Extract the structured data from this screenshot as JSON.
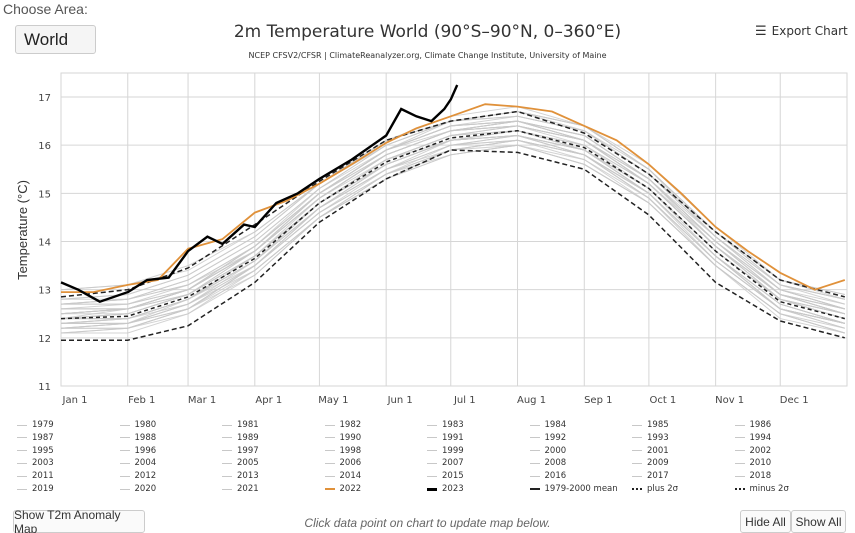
{
  "area": {
    "label": "Choose Area:",
    "selected": "World"
  },
  "header": {
    "title": "2m Temperature World (90°S–90°N, 0–360°E)",
    "subtitle": "NCEP CFSV2/CFSR | ClimateReanalyzer.org, Climate Change Institute, University of Maine",
    "export_label": "Export Chart",
    "export_icon": "hamburger-menu-icon"
  },
  "footer": {
    "anomaly_button": "Show T2m Anomaly Map",
    "hint": "Click data point on chart to update map below.",
    "hide_all": "Hide All",
    "show_all": "Show All"
  },
  "colors": {
    "grey_years": "#c8c8c8",
    "y2022": "#e0913a",
    "y2023": "#000000",
    "climatology": "#222222",
    "grid": "#d6d6d6"
  },
  "chart_data": {
    "type": "line",
    "title": "2m Temperature World (90°S–90°N, 0–360°E)",
    "ylabel": "Temperature (°C)",
    "xlabel": "",
    "ylim": [
      11,
      17.5
    ],
    "yticks": [
      11,
      12,
      13,
      14,
      15,
      16,
      17
    ],
    "x_unit": "day of year",
    "xlim": [
      0,
      365
    ],
    "xticks": [
      {
        "day": 0,
        "label": "Jan 1"
      },
      {
        "day": 31,
        "label": "Feb 1"
      },
      {
        "day": 59,
        "label": "Mar 1"
      },
      {
        "day": 90,
        "label": "Apr 1"
      },
      {
        "day": 120,
        "label": "May 1"
      },
      {
        "day": 151,
        "label": "Jun 1"
      },
      {
        "day": 181,
        "label": "Jul 1"
      },
      {
        "day": 212,
        "label": "Aug 1"
      },
      {
        "day": 243,
        "label": "Sep 1"
      },
      {
        "day": 273,
        "label": "Oct 1"
      },
      {
        "day": 304,
        "label": "Nov 1"
      },
      {
        "day": 334,
        "label": "Dec 1"
      }
    ],
    "grid": true,
    "legend_position": "bottom",
    "monthly_days": [
      0,
      31,
      59,
      90,
      120,
      151,
      181,
      212,
      243,
      273,
      304,
      334,
      364
    ],
    "years": [
      {
        "name": "1979",
        "values": [
          12.2,
          12.2,
          12.6,
          13.4,
          14.5,
          15.4,
          15.9,
          16.1,
          15.7,
          14.9,
          13.5,
          12.5,
          12.2
        ]
      },
      {
        "name": "1980",
        "values": [
          12.3,
          12.3,
          12.7,
          13.5,
          14.7,
          15.5,
          16.0,
          16.1,
          15.8,
          15.0,
          13.6,
          12.6,
          12.2
        ]
      },
      {
        "name": "1981",
        "values": [
          12.2,
          12.3,
          12.6,
          13.5,
          14.6,
          15.4,
          16.0,
          16.1,
          15.8,
          14.9,
          13.6,
          12.6,
          12.3
        ]
      },
      {
        "name": "1982",
        "values": [
          12.1,
          12.2,
          12.5,
          13.4,
          14.5,
          15.3,
          15.8,
          16.0,
          15.7,
          14.8,
          13.5,
          12.5,
          12.1
        ]
      },
      {
        "name": "1983",
        "values": [
          12.4,
          12.4,
          12.8,
          13.5,
          14.7,
          15.5,
          16.1,
          16.2,
          15.8,
          15.0,
          13.7,
          12.6,
          12.3
        ]
      },
      {
        "name": "1984",
        "values": [
          12.1,
          12.1,
          12.5,
          13.3,
          14.5,
          15.4,
          15.8,
          16.0,
          15.6,
          14.8,
          13.5,
          12.4,
          12.1
        ]
      },
      {
        "name": "1985",
        "values": [
          12.1,
          12.2,
          12.6,
          13.3,
          14.5,
          15.3,
          15.9,
          16.0,
          15.6,
          14.8,
          13.5,
          12.5,
          12.1
        ]
      },
      {
        "name": "1986",
        "values": [
          12.2,
          12.3,
          12.6,
          13.5,
          14.6,
          15.5,
          15.9,
          16.1,
          15.8,
          14.9,
          13.6,
          12.6,
          12.3
        ]
      },
      {
        "name": "1987",
        "values": [
          12.3,
          12.4,
          12.8,
          13.6,
          14.8,
          15.6,
          16.1,
          16.3,
          15.9,
          15.1,
          13.8,
          12.8,
          12.4
        ]
      },
      {
        "name": "1988",
        "values": [
          12.5,
          12.5,
          12.9,
          13.7,
          14.8,
          15.6,
          16.1,
          16.2,
          15.9,
          15.0,
          13.7,
          12.6,
          12.3
        ]
      },
      {
        "name": "1989",
        "values": [
          12.2,
          12.3,
          12.7,
          13.5,
          14.7,
          15.5,
          16.0,
          16.2,
          15.8,
          15.0,
          13.7,
          12.6,
          12.3
        ]
      },
      {
        "name": "1990",
        "values": [
          12.4,
          12.5,
          12.9,
          13.7,
          14.8,
          15.7,
          16.1,
          16.3,
          16.0,
          15.1,
          13.8,
          12.8,
          12.4
        ]
      },
      {
        "name": "1991",
        "values": [
          12.4,
          12.4,
          12.8,
          13.7,
          14.8,
          15.6,
          16.1,
          16.2,
          15.8,
          15.0,
          13.7,
          12.7,
          12.3
        ]
      },
      {
        "name": "1992",
        "values": [
          12.3,
          12.3,
          12.7,
          13.4,
          14.5,
          15.3,
          15.8,
          16.0,
          15.6,
          14.8,
          13.5,
          12.5,
          12.1
        ]
      },
      {
        "name": "1993",
        "values": [
          12.2,
          12.2,
          12.6,
          13.5,
          14.6,
          15.4,
          15.9,
          16.1,
          15.8,
          14.9,
          13.6,
          12.6,
          12.2
        ]
      },
      {
        "name": "1994",
        "values": [
          12.3,
          12.3,
          12.8,
          13.6,
          14.7,
          15.6,
          16.1,
          16.2,
          15.9,
          15.0,
          13.7,
          12.7,
          12.3
        ]
      },
      {
        "name": "1995",
        "values": [
          12.4,
          12.6,
          12.9,
          13.7,
          14.8,
          15.7,
          16.2,
          16.3,
          15.9,
          15.1,
          13.8,
          12.8,
          12.4
        ]
      },
      {
        "name": "1996",
        "values": [
          12.3,
          12.4,
          12.7,
          13.6,
          14.7,
          15.5,
          16.0,
          16.2,
          15.9,
          15.0,
          13.7,
          12.6,
          12.3
        ]
      },
      {
        "name": "1997",
        "values": [
          12.4,
          12.5,
          12.9,
          13.7,
          14.8,
          15.7,
          16.2,
          16.4,
          16.1,
          15.2,
          13.9,
          12.9,
          12.6
        ]
      },
      {
        "name": "1998",
        "values": [
          12.8,
          12.8,
          13.1,
          13.9,
          15.0,
          15.9,
          16.4,
          16.5,
          16.1,
          15.2,
          13.9,
          12.8,
          12.5
        ]
      },
      {
        "name": "1999",
        "values": [
          12.4,
          12.4,
          12.8,
          13.6,
          14.7,
          15.6,
          16.1,
          16.3,
          15.9,
          15.0,
          13.7,
          12.7,
          12.3
        ]
      },
      {
        "name": "2000",
        "values": [
          12.3,
          12.4,
          12.8,
          13.6,
          14.8,
          15.6,
          16.1,
          16.2,
          15.9,
          15.1,
          13.7,
          12.7,
          12.3
        ]
      },
      {
        "name": "2001",
        "values": [
          12.4,
          12.5,
          12.9,
          13.8,
          14.9,
          15.8,
          16.3,
          16.4,
          16.1,
          15.2,
          13.9,
          12.9,
          12.5
        ]
      },
      {
        "name": "2002",
        "values": [
          12.6,
          12.7,
          13.1,
          13.8,
          15.0,
          15.8,
          16.3,
          16.4,
          16.1,
          15.3,
          14.0,
          12.9,
          12.6
        ]
      },
      {
        "name": "2003",
        "values": [
          12.6,
          12.6,
          13.0,
          13.8,
          14.9,
          15.8,
          16.3,
          16.5,
          16.1,
          15.3,
          13.9,
          12.9,
          12.5
        ]
      },
      {
        "name": "2004",
        "values": [
          12.5,
          12.6,
          13.0,
          13.8,
          14.9,
          15.7,
          16.2,
          16.4,
          16.0,
          15.2,
          14.0,
          12.9,
          12.5
        ]
      },
      {
        "name": "2005",
        "values": [
          12.5,
          12.6,
          13.0,
          13.9,
          15.0,
          15.9,
          16.3,
          16.5,
          16.2,
          15.3,
          14.0,
          12.9,
          12.5
        ]
      },
      {
        "name": "2006",
        "values": [
          12.5,
          12.6,
          12.9,
          13.8,
          14.9,
          15.8,
          16.3,
          16.5,
          16.1,
          15.3,
          14.0,
          13.0,
          12.6
        ]
      },
      {
        "name": "2007",
        "values": [
          12.7,
          12.7,
          13.0,
          13.8,
          14.9,
          15.8,
          16.3,
          16.4,
          16.1,
          15.2,
          13.9,
          12.8,
          12.5
        ]
      },
      {
        "name": "2008",
        "values": [
          12.4,
          12.4,
          12.8,
          13.7,
          14.8,
          15.7,
          16.2,
          16.3,
          16.0,
          15.2,
          13.9,
          12.8,
          12.5
        ]
      },
      {
        "name": "2009",
        "values": [
          12.5,
          12.6,
          13.0,
          13.8,
          15.0,
          15.9,
          16.4,
          16.5,
          16.2,
          15.3,
          14.1,
          13.0,
          12.6
        ]
      },
      {
        "name": "2010",
        "values": [
          12.7,
          12.8,
          13.2,
          14.0,
          15.1,
          15.9,
          16.4,
          16.5,
          16.1,
          15.2,
          13.9,
          12.9,
          12.6
        ]
      },
      {
        "name": "2011",
        "values": [
          12.4,
          12.5,
          12.9,
          13.7,
          14.9,
          15.8,
          16.3,
          16.4,
          16.1,
          15.2,
          13.9,
          12.9,
          12.5
        ]
      },
      {
        "name": "2012",
        "values": [
          12.5,
          12.6,
          13.0,
          13.8,
          15.0,
          15.9,
          16.4,
          16.5,
          16.2,
          15.3,
          14.0,
          13.0,
          12.6
        ]
      },
      {
        "name": "2013",
        "values": [
          12.6,
          12.6,
          13.0,
          13.8,
          15.0,
          15.8,
          16.3,
          16.5,
          16.2,
          15.3,
          14.0,
          13.0,
          12.6
        ]
      },
      {
        "name": "2014",
        "values": [
          12.6,
          12.6,
          13.0,
          13.9,
          15.0,
          15.9,
          16.4,
          16.6,
          16.3,
          15.4,
          14.1,
          13.0,
          12.7
        ]
      },
      {
        "name": "2015",
        "values": [
          12.7,
          12.8,
          13.2,
          14.0,
          15.1,
          16.0,
          16.5,
          16.7,
          16.4,
          15.5,
          14.2,
          13.2,
          12.9
        ]
      },
      {
        "name": "2016",
        "values": [
          13.0,
          13.1,
          13.5,
          14.2,
          15.2,
          16.0,
          16.5,
          16.7,
          16.4,
          15.5,
          14.2,
          13.1,
          12.8
        ]
      },
      {
        "name": "2017",
        "values": [
          12.8,
          12.9,
          13.3,
          14.1,
          15.2,
          16.1,
          16.5,
          16.7,
          16.4,
          15.5,
          14.2,
          13.2,
          12.8
        ]
      },
      {
        "name": "2018",
        "values": [
          12.7,
          12.8,
          13.1,
          13.9,
          15.1,
          16.0,
          16.5,
          16.6,
          16.3,
          15.4,
          14.1,
          13.1,
          12.7
        ]
      },
      {
        "name": "2019",
        "values": [
          12.8,
          12.9,
          13.3,
          14.1,
          15.2,
          16.1,
          16.6,
          16.8,
          16.4,
          15.6,
          14.3,
          13.2,
          12.9
        ]
      },
      {
        "name": "2020",
        "values": [
          13.0,
          13.1,
          13.4,
          14.2,
          15.2,
          16.1,
          16.5,
          16.7,
          16.3,
          15.4,
          14.2,
          13.1,
          12.8
        ]
      },
      {
        "name": "2021",
        "values": [
          12.7,
          12.7,
          13.0,
          13.9,
          15.0,
          15.9,
          16.5,
          16.6,
          16.3,
          15.5,
          14.1,
          13.1,
          12.8
        ]
      }
    ],
    "y2022": {
      "name": "2022",
      "days": [
        0,
        15,
        31,
        45,
        59,
        75,
        90,
        105,
        120,
        135,
        151,
        165,
        181,
        197,
        212,
        228,
        243,
        258,
        273,
        288,
        304,
        319,
        334,
        350,
        364
      ],
      "values": [
        12.95,
        12.95,
        13.1,
        13.2,
        13.85,
        14.05,
        14.6,
        14.85,
        15.2,
        15.6,
        16.05,
        16.35,
        16.6,
        16.85,
        16.8,
        16.7,
        16.4,
        16.1,
        15.6,
        15.0,
        14.3,
        13.8,
        13.35,
        13.0,
        13.2
      ]
    },
    "y2023": {
      "name": "2023",
      "days": [
        0,
        8,
        18,
        31,
        40,
        50,
        59,
        68,
        75,
        85,
        90,
        100,
        110,
        120,
        135,
        151,
        158,
        165,
        172,
        178,
        181,
        184
      ],
      "values": [
        13.15,
        13.0,
        12.75,
        12.95,
        13.2,
        13.25,
        13.8,
        14.1,
        13.95,
        14.35,
        14.3,
        14.8,
        15.0,
        15.3,
        15.7,
        16.2,
        16.75,
        16.6,
        16.5,
        16.75,
        16.95,
        17.25
      ]
    },
    "mean": {
      "name": "1979-2000 mean",
      "values": [
        12.4,
        12.45,
        12.85,
        13.65,
        14.8,
        15.65,
        16.15,
        16.3,
        15.95,
        15.1,
        13.8,
        12.75,
        12.4
      ]
    },
    "plus2sigma": {
      "name": "plus 2σ",
      "values": [
        12.85,
        13.0,
        13.45,
        14.35,
        15.25,
        16.1,
        16.5,
        16.7,
        16.25,
        15.4,
        14.2,
        13.2,
        12.85
      ]
    },
    "minus2sigma": {
      "name": "minus 2σ",
      "values": [
        11.95,
        11.95,
        12.25,
        13.15,
        14.4,
        15.3,
        15.9,
        15.85,
        15.5,
        14.55,
        13.15,
        12.35,
        12.0
      ]
    }
  }
}
